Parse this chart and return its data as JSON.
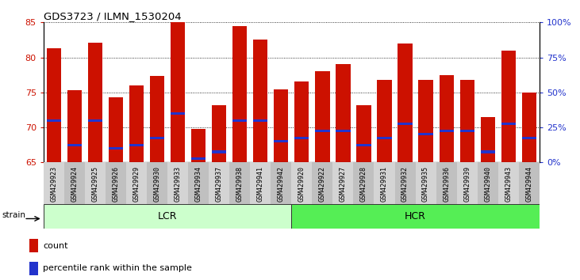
{
  "title": "GDS3723 / ILMN_1530204",
  "samples": [
    "GSM429923",
    "GSM429924",
    "GSM429925",
    "GSM429926",
    "GSM429929",
    "GSM429930",
    "GSM429933",
    "GSM429934",
    "GSM429937",
    "GSM429938",
    "GSM429941",
    "GSM429942",
    "GSM429920",
    "GSM429922",
    "GSM429927",
    "GSM429928",
    "GSM429931",
    "GSM429932",
    "GSM429935",
    "GSM429936",
    "GSM429939",
    "GSM429940",
    "GSM429943",
    "GSM429944"
  ],
  "counts": [
    81.3,
    75.3,
    82.1,
    74.3,
    76.0,
    77.3,
    85.0,
    69.8,
    73.2,
    84.5,
    82.5,
    75.4,
    76.6,
    78.0,
    79.0,
    73.2,
    76.8,
    82.0,
    76.8,
    77.5,
    76.8,
    71.5,
    81.0,
    75.0
  ],
  "percentile_ranks": [
    71.0,
    67.5,
    71.0,
    67.0,
    67.5,
    68.5,
    72.0,
    65.5,
    66.5,
    71.0,
    71.0,
    68.0,
    68.5,
    69.5,
    69.5,
    67.5,
    68.5,
    70.5,
    69.0,
    69.5,
    69.5,
    66.5,
    70.5,
    68.5
  ],
  "groups": [
    {
      "label": "LCR",
      "start": 0,
      "end": 12,
      "color": "#ccffcc"
    },
    {
      "label": "HCR",
      "start": 12,
      "end": 24,
      "color": "#55ee55"
    }
  ],
  "ylim_left": [
    65,
    85
  ],
  "ylim_right": [
    0,
    100
  ],
  "yticks_left": [
    65,
    70,
    75,
    80,
    85
  ],
  "yticks_right": [
    0,
    25,
    50,
    75,
    100
  ],
  "bar_color": "#cc1100",
  "blue_color": "#2233cc",
  "baseline": 65,
  "bar_width": 0.7
}
